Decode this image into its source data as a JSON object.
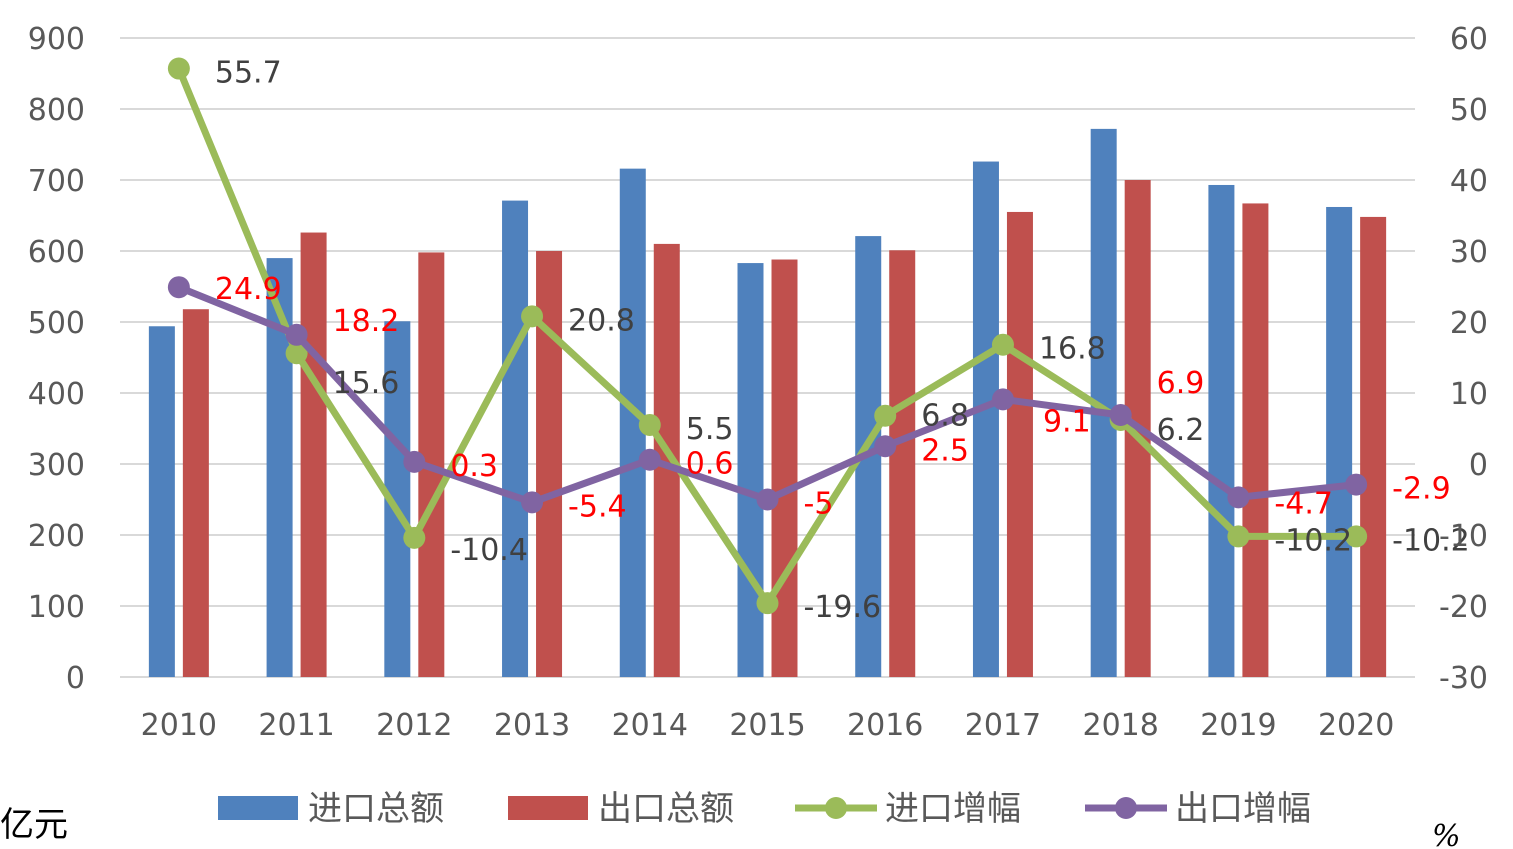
{
  "chart_data": {
    "type": "bar",
    "categories": [
      "2010",
      "2011",
      "2012",
      "2013",
      "2014",
      "2015",
      "2016",
      "2017",
      "2018",
      "2019",
      "2020"
    ],
    "series": [
      {
        "name": "进口总额",
        "type": "bar",
        "axis": "left",
        "color": "#4F81BD",
        "values": [
          494,
          590,
          501,
          671,
          716,
          583,
          621,
          726,
          772,
          693,
          662
        ]
      },
      {
        "name": "出口总额",
        "type": "bar",
        "axis": "left",
        "color": "#C0504D",
        "values": [
          518,
          626,
          598,
          600,
          610,
          588,
          601,
          655,
          700,
          667,
          648
        ]
      },
      {
        "name": "进口增幅",
        "type": "line",
        "axis": "right",
        "color": "#9BBB59",
        "label_color": "#404040",
        "values": [
          55.7,
          15.6,
          -10.4,
          20.8,
          5.5,
          -19.6,
          6.8,
          16.8,
          6.2,
          -10.2,
          -10.2
        ]
      },
      {
        "name": "出口增幅",
        "type": "line",
        "axis": "right",
        "color": "#8064A2",
        "label_color": "#FF0000",
        "values": [
          24.9,
          18.2,
          0.3,
          -5.4,
          0.6,
          -5,
          2.5,
          9.1,
          6.9,
          -4.7,
          -2.9
        ]
      }
    ],
    "y_left": {
      "min": 0,
      "max": 900,
      "step": 100,
      "ticks": [
        "0",
        "100",
        "200",
        "300",
        "400",
        "500",
        "600",
        "700",
        "800",
        "900"
      ]
    },
    "y_right": {
      "min": -30,
      "max": 60,
      "step": 10,
      "ticks": [
        "-30",
        "-20",
        "-10",
        "0",
        "10",
        "20",
        "30",
        "40",
        "50",
        "60"
      ]
    },
    "ylabel_left": "亿元",
    "ylabel_right": "%",
    "grid": true,
    "legend_position": "bottom"
  }
}
